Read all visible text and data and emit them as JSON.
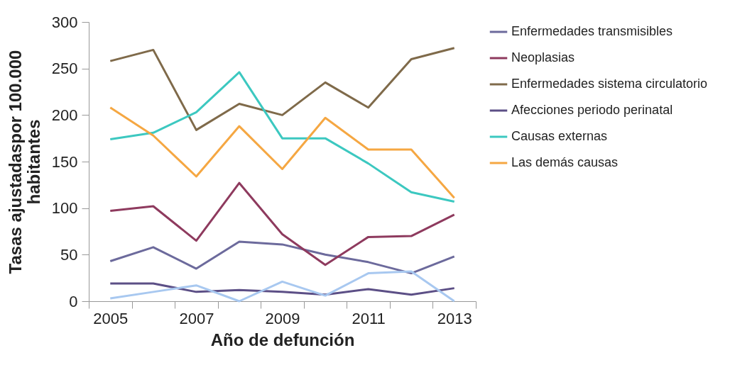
{
  "chart_data": {
    "type": "line",
    "xlabel": "Año de defunción",
    "ylabel": "Tasas ajustadaspor 100.000 habitantes",
    "categories": [
      "2005",
      null,
      "2007",
      null,
      "2009",
      null,
      "2011",
      null,
      "2013"
    ],
    "ylim": [
      0,
      300
    ],
    "yticks": [
      0,
      50,
      100,
      150,
      200,
      250,
      300
    ],
    "grid": false,
    "legend": "right",
    "line_style": "solid",
    "series": [
      {
        "name": "Enfermedades transmisibles",
        "color": "#6c6a9c",
        "values": [
          43,
          58,
          35,
          64,
          61,
          50,
          42,
          30,
          48
        ]
      },
      {
        "name": "Neoplasias",
        "color": "#8e3a5e",
        "values": [
          97,
          102,
          65,
          127,
          72,
          39,
          69,
          70,
          93
        ]
      },
      {
        "name": "Enfermedades sistema circulatorio",
        "color": "#7f6a4a",
        "values": [
          258,
          270,
          184,
          212,
          200,
          235,
          208,
          260,
          272
        ]
      },
      {
        "name": "Afecciones periodo perinatal",
        "color": "#5c4f86",
        "values": [
          19,
          19,
          10,
          12,
          10,
          7,
          13,
          7,
          14
        ]
      },
      {
        "name": "Causas externas",
        "color": "#3cc8c0",
        "values": [
          174,
          181,
          203,
          246,
          175,
          175,
          148,
          117,
          107
        ]
      },
      {
        "name": "Las demás causas",
        "color": "#f5a742",
        "values": [
          208,
          178,
          134,
          188,
          142,
          197,
          163,
          163,
          111
        ]
      },
      {
        "color": "#a8c8f0",
        "values": [
          3,
          10,
          17,
          0,
          21,
          6,
          30,
          32,
          0
        ]
      }
    ]
  }
}
